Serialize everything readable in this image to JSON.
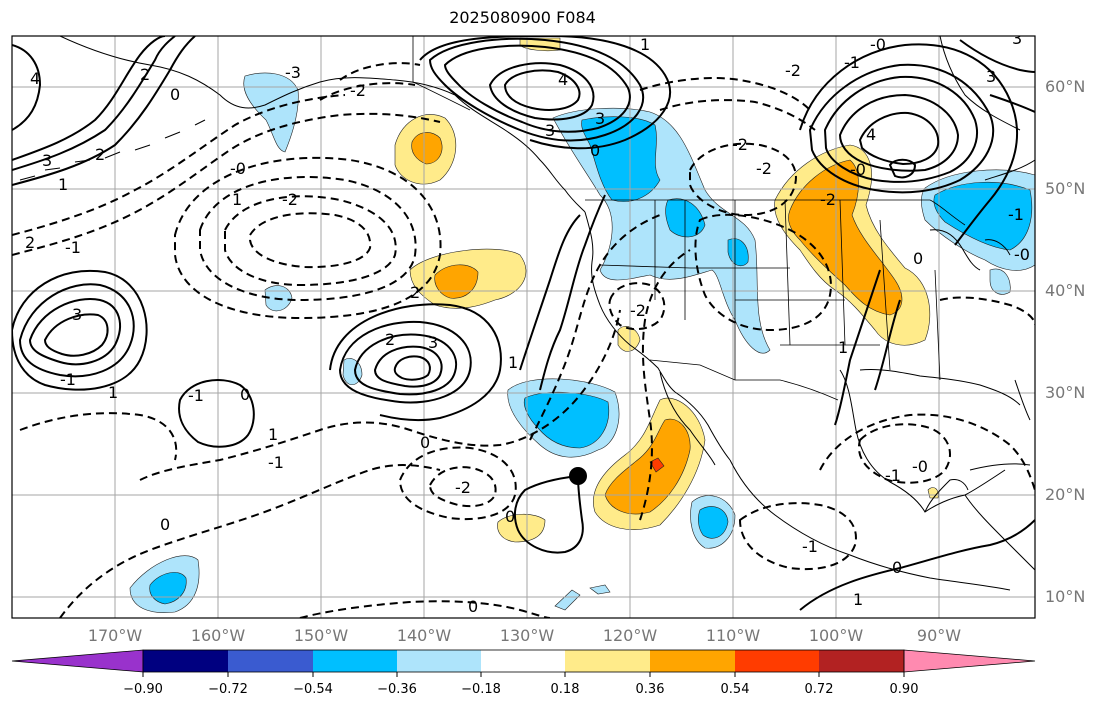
{
  "title": "2025080900 F084",
  "lat_labels": [
    "60°N",
    "50°N",
    "40°N",
    "30°N",
    "20°N",
    "10°N"
  ],
  "lon_labels": [
    "170°W",
    "160°W",
    "150°W",
    "140°W",
    "130°W",
    "120°W",
    "110°W",
    "100°W",
    "90°W"
  ],
  "contour_labels": [
    "4",
    "3",
    "2",
    "1",
    "0",
    "-2",
    "-3",
    "2",
    "3",
    "-1",
    "3",
    "2",
    "2",
    "-0",
    "1",
    "-2",
    "-1",
    "2",
    "-1",
    "-1",
    "-2",
    "-2",
    "0",
    "1",
    "0",
    "-2",
    "4",
    "3",
    "0",
    "-0",
    "1",
    "-1",
    "-0",
    "-1",
    "1",
    "-0",
    "0",
    "-2",
    "1",
    "0",
    "0",
    "-1",
    "-1",
    "0",
    "1",
    "0",
    "4",
    "3",
    "-1",
    "-2",
    "3",
    "3",
    "-2",
    "1",
    "-0"
  ],
  "colorbar": {
    "tick_labels": [
      "−0.90",
      "−0.72",
      "−0.54",
      "−0.36",
      "−0.18",
      "0.18",
      "0.36",
      "0.54",
      "0.72",
      "0.90"
    ],
    "colors": [
      "#9932cc",
      "#000080",
      "#3a5bd0",
      "#00bfff",
      "#aee4fb",
      "#ffffff",
      "#ffeb8a",
      "#ffa500",
      "#ff3c00",
      "#b22222",
      "#ff8ab0"
    ]
  },
  "marker": {
    "name": "black-dot",
    "lat": 21.5,
    "lon": -125.5
  }
}
